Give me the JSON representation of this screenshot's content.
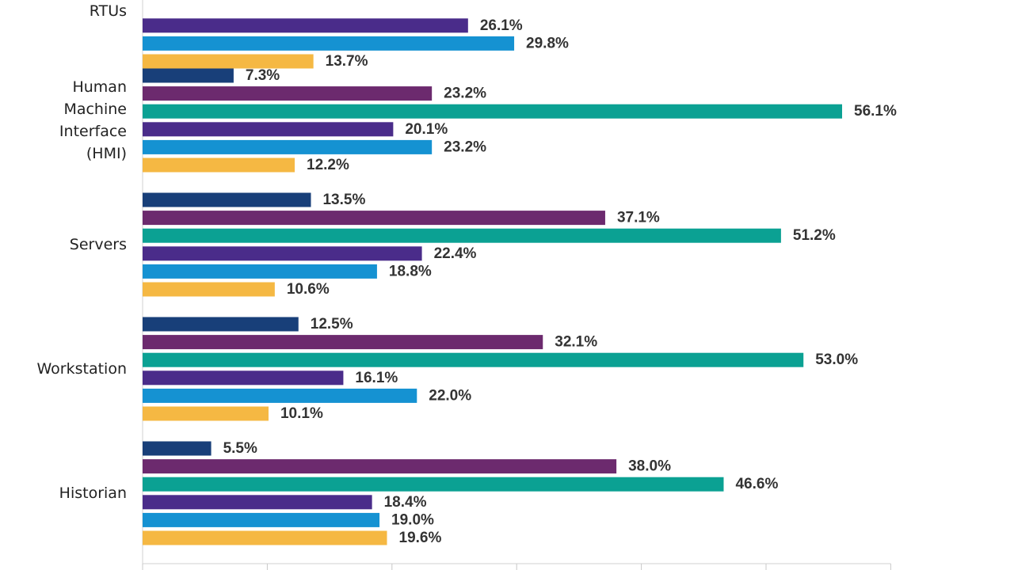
{
  "chart_data": {
    "type": "bar",
    "orientation": "horizontal",
    "categories": [
      [
        "RTUs"
      ],
      [
        "Human",
        "Machine",
        "Interface",
        "(HMI)"
      ],
      [
        "Servers"
      ],
      [
        "Workstation"
      ],
      [
        "Historian"
      ]
    ],
    "series_colors": [
      "#183f79",
      "#6c2a6e",
      "#0ba193",
      "#4a2c8a",
      "#1592d2",
      "#f5b843"
    ],
    "bars": [
      [
        null,
        null,
        null,
        26.1,
        29.8,
        13.7
      ],
      [
        7.3,
        23.2,
        56.1,
        20.1,
        23.2,
        12.2
      ],
      [
        13.5,
        37.1,
        51.2,
        22.4,
        18.8,
        10.6
      ],
      [
        12.5,
        32.1,
        53.0,
        16.1,
        22.0,
        10.1
      ],
      [
        5.5,
        38.0,
        46.6,
        18.4,
        19.0,
        19.6
      ]
    ],
    "labels": [
      [
        null,
        null,
        null,
        "26.1%",
        "29.8%",
        "13.7%"
      ],
      [
        "7.3%",
        "23.2%",
        "56.1%",
        "20.1%",
        "23.2%",
        "12.2%"
      ],
      [
        "13.5%",
        "37.1%",
        "51.2%",
        "22.4%",
        "18.8%",
        "10.6%"
      ],
      [
        "12.5%",
        "32.1%",
        "53.0%",
        "16.1%",
        "22.0%",
        "10.1%"
      ],
      [
        "5.5%",
        "38.0%",
        "46.6%",
        "18.4%",
        "19.0%",
        "19.6%"
      ]
    ],
    "xlim": [
      0,
      60
    ],
    "grid": false,
    "legend": "none"
  }
}
